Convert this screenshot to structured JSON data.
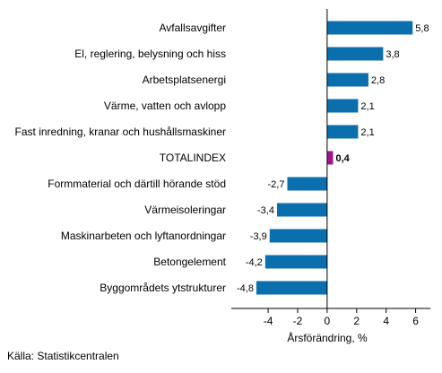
{
  "chart_data": {
    "type": "bar",
    "orientation": "horizontal",
    "categories": [
      "Avfallsavgifter",
      "El, reglering, belysning och hiss",
      "Arbetsplatsenergi",
      "Värme, vatten och avlopp",
      "Fast inredning, kranar och hushållsmaskiner",
      "TOTALINDEX",
      "Formmaterial och därtill hörande stöd",
      "Värmeisoleringar",
      "Maskinarbeten och lyftanordningar",
      "Betongelement",
      "Byggområdets ytstrukturer"
    ],
    "values": [
      5.8,
      3.8,
      2.8,
      2.1,
      2.1,
      0.4,
      -2.7,
      -3.4,
      -3.9,
      -4.2,
      -4.8
    ],
    "value_labels": [
      "5,8",
      "3,8",
      "2,8",
      "2,1",
      "2,1",
      "0,4",
      "-2,7",
      "-3,4",
      "-3,9",
      "-4,2",
      "-4,8"
    ],
    "highlight_category": "TOTALINDEX",
    "xlim": [
      -6.5,
      7
    ],
    "xticks": [
      -4,
      -2,
      0,
      2,
      4,
      6
    ],
    "xtick_labels": [
      "-4",
      "-2",
      "0",
      "2",
      "4",
      "6"
    ],
    "xlabel": "Årsförändring, %",
    "grid": false,
    "colors": {
      "bar": "#0b6fad",
      "highlight": "#a0148c",
      "axis": "#000000"
    }
  },
  "source": "Källa: Statistikcentralen"
}
